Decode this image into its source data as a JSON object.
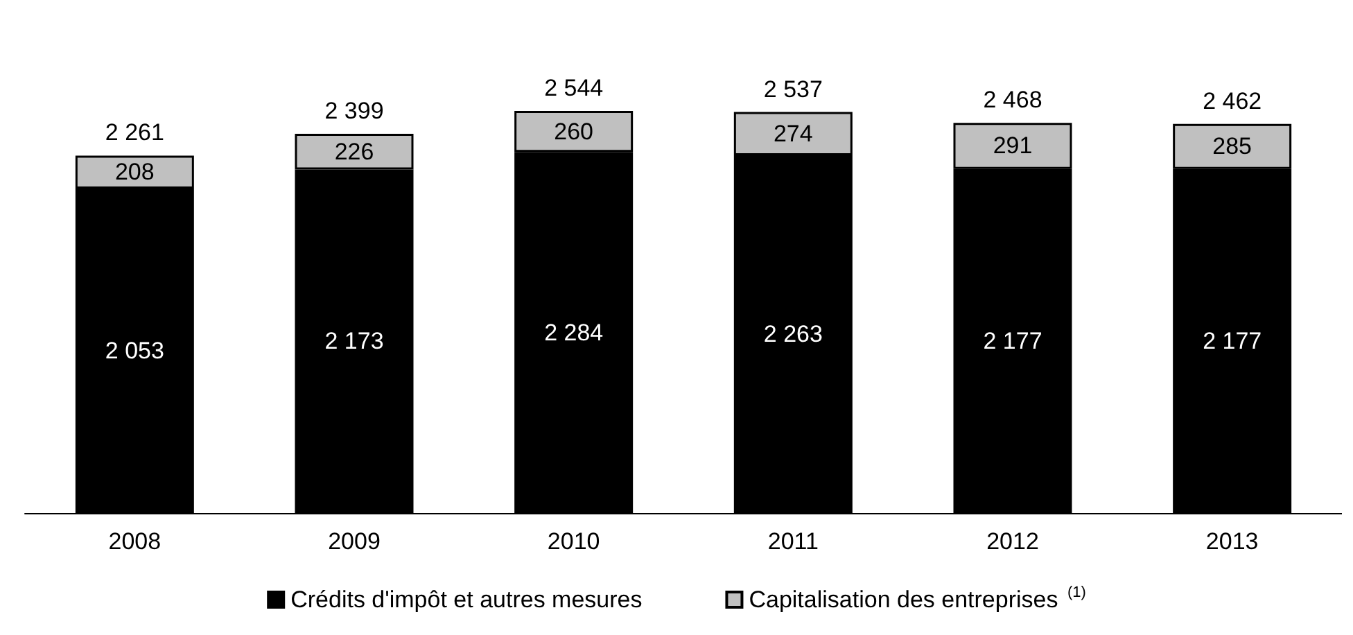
{
  "chart_data": {
    "type": "bar",
    "stacked": true,
    "categories": [
      "2008",
      "2009",
      "2010",
      "2011",
      "2012",
      "2013"
    ],
    "series": [
      {
        "name": "Crédits d'impôt et autres mesures",
        "color": "#000000",
        "values": [
          2053,
          2173,
          2284,
          2263,
          2177,
          2177
        ],
        "value_labels": [
          "2 053",
          "2 173",
          "2 284",
          "2 263",
          "2 177",
          "2 177"
        ]
      },
      {
        "name": "Capitalisation des entreprises $^{(1)}$",
        "color": "#c0c0c0",
        "values": [
          208,
          226,
          260,
          274,
          291,
          285
        ],
        "value_labels": [
          "208",
          "226",
          "260",
          "274",
          "291",
          "285"
        ]
      }
    ],
    "totals": [
      "2 261",
      "2 399",
      "2 544",
      "2 537",
      "2 468",
      "2 462"
    ],
    "tick_labels": "x",
    "legend": "bottom"
  }
}
